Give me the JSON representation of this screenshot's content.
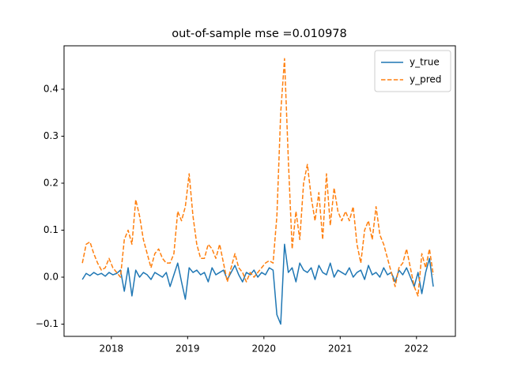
{
  "chart_data": {
    "type": "line",
    "title": "out-of-sample mse =0.010978",
    "x": [
      2017.62,
      2017.67,
      2017.72,
      2017.77,
      2017.82,
      2017.87,
      2017.92,
      2017.97,
      2018.02,
      2018.07,
      2018.12,
      2018.17,
      2018.22,
      2018.27,
      2018.32,
      2018.37,
      2018.42,
      2018.47,
      2018.52,
      2018.57,
      2018.62,
      2018.67,
      2018.72,
      2018.77,
      2018.82,
      2018.87,
      2018.92,
      2018.97,
      2019.02,
      2019.07,
      2019.12,
      2019.17,
      2019.22,
      2019.27,
      2019.32,
      2019.37,
      2019.42,
      2019.47,
      2019.52,
      2019.57,
      2019.62,
      2019.67,
      2019.72,
      2019.77,
      2019.82,
      2019.87,
      2019.92,
      2019.97,
      2020.02,
      2020.07,
      2020.12,
      2020.17,
      2020.22,
      2020.27,
      2020.32,
      2020.37,
      2020.42,
      2020.47,
      2020.52,
      2020.57,
      2020.62,
      2020.67,
      2020.72,
      2020.77,
      2020.82,
      2020.87,
      2020.92,
      2020.97,
      2021.02,
      2021.07,
      2021.12,
      2021.17,
      2021.22,
      2021.27,
      2021.32,
      2021.37,
      2021.42,
      2021.47,
      2021.52,
      2021.57,
      2021.62,
      2021.67,
      2021.72,
      2021.77,
      2021.82,
      2021.87,
      2021.92,
      2021.97,
      2022.02,
      2022.07,
      2022.12,
      2022.17,
      2022.22
    ],
    "series": [
      {
        "name": "y_true",
        "color": "#1f77b4",
        "dash": false,
        "values": [
          -0.005,
          0.008,
          0.003,
          0.01,
          0.005,
          0.008,
          0.002,
          0.01,
          0.005,
          0.008,
          0.015,
          -0.03,
          0.02,
          -0.04,
          0.015,
          0.0,
          0.01,
          0.005,
          -0.005,
          0.01,
          0.005,
          0.0,
          0.01,
          -0.02,
          0.005,
          0.03,
          -0.01,
          -0.047,
          0.02,
          0.01,
          0.015,
          0.005,
          0.01,
          -0.01,
          0.02,
          0.005,
          0.01,
          0.015,
          -0.005,
          0.01,
          0.025,
          0.005,
          -0.01,
          0.01,
          0.005,
          0.015,
          0.0,
          0.01,
          0.005,
          0.02,
          0.015,
          -0.08,
          -0.1,
          0.07,
          0.01,
          0.02,
          -0.01,
          0.03,
          0.015,
          0.01,
          0.02,
          -0.005,
          0.025,
          0.01,
          0.005,
          0.03,
          0.0,
          0.015,
          0.01,
          0.005,
          0.02,
          0.0,
          0.01,
          0.015,
          -0.005,
          0.025,
          0.005,
          0.01,
          0.0,
          0.02,
          0.005,
          0.01,
          -0.01,
          0.015,
          0.005,
          0.02,
          0.0,
          -0.02,
          0.01,
          -0.035,
          0.01,
          0.04,
          -0.02
        ]
      },
      {
        "name": "y_pred",
        "color": "#ff7f0e",
        "dash": true,
        "values": [
          0.03,
          0.07,
          0.075,
          0.05,
          0.03,
          0.015,
          0.02,
          0.04,
          0.02,
          0.01,
          0.0,
          0.08,
          0.1,
          0.07,
          0.165,
          0.13,
          0.08,
          0.05,
          0.02,
          0.05,
          0.06,
          0.04,
          0.03,
          0.03,
          0.05,
          0.14,
          0.12,
          0.15,
          0.22,
          0.13,
          0.07,
          0.04,
          0.04,
          0.07,
          0.06,
          0.04,
          0.07,
          0.03,
          -0.01,
          0.02,
          0.05,
          0.02,
          0.01,
          -0.01,
          0.01,
          0.0,
          0.01,
          0.02,
          0.03,
          0.035,
          0.03,
          0.13,
          0.35,
          0.465,
          0.25,
          0.06,
          0.14,
          0.08,
          0.2,
          0.24,
          0.17,
          0.12,
          0.18,
          0.08,
          0.22,
          0.11,
          0.19,
          0.14,
          0.12,
          0.14,
          0.12,
          0.15,
          0.07,
          0.03,
          0.1,
          0.12,
          0.08,
          0.15,
          0.09,
          0.07,
          0.04,
          0.01,
          -0.02,
          0.02,
          0.03,
          0.06,
          0.02,
          -0.02,
          -0.04,
          0.05,
          0.02,
          0.06,
          0.005
        ]
      }
    ],
    "xlim": [
      2017.38,
      2022.51
    ],
    "xticks": [
      2018,
      2019,
      2020,
      2021,
      2022
    ],
    "ylim": [
      -0.126,
      0.4924
    ],
    "yticks": [
      {
        "value": -0.1,
        "label": "−0.1"
      },
      {
        "value": 0,
        "label": "0.0"
      },
      {
        "value": 0.1,
        "label": "0.1"
      },
      {
        "value": 0.2,
        "label": "0.2"
      },
      {
        "value": 0.3,
        "label": "0.3"
      },
      {
        "value": 0.4,
        "label": "0.4"
      }
    ],
    "legend": "upper right",
    "grid": false
  }
}
